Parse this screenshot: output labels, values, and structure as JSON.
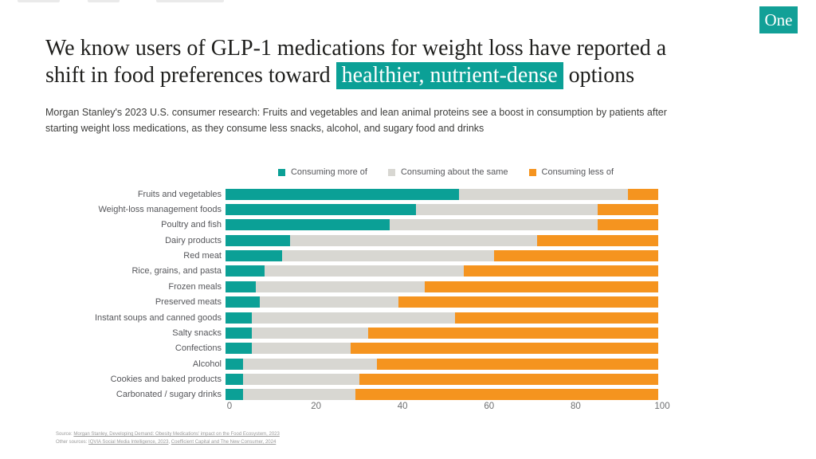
{
  "brand": {
    "logo_text": "One",
    "teal": "#0ba096",
    "orange": "#f5941f",
    "gray": "#d8d7d2"
  },
  "header": {
    "title_line1": "We know users of GLP-1 medications for weight loss have reported a",
    "title_line2_pre": "shift in food preferences toward ",
    "title_highlight": "healthier, nutrient-dense",
    "title_line2_post": " options",
    "subtitle": "Morgan Stanley's 2023 U.S. consumer research: Fruits and vegetables and lean animal proteins see a boost in consumption by patients after starting weight loss medications, as they consume less snacks, alcohol, and sugary food and drinks"
  },
  "chart_data": {
    "type": "bar",
    "orientation": "horizontal",
    "stacked": true,
    "categories": [
      "Fruits and vegetables",
      "Weight-loss management foods",
      "Poultry and fish",
      "Dairy products",
      "Red meat",
      "Rice, grains, and pasta",
      "Frozen meals",
      "Preserved meats",
      "Instant soups and canned goods",
      "Salty snacks",
      "Confections",
      "Alcohol",
      "Cookies and baked products",
      "Carbonated / sugary drinks"
    ],
    "series": [
      {
        "name": "Consuming more of",
        "color": "#0ba096",
        "values": [
          54,
          44,
          38,
          15,
          13,
          9,
          7,
          8,
          6,
          6,
          6,
          4,
          4,
          4
        ]
      },
      {
        "name": "Consuming about the same",
        "color": "#d8d7d2",
        "values": [
          39,
          42,
          48,
          57,
          49,
          46,
          39,
          32,
          47,
          27,
          23,
          31,
          27,
          26
        ]
      },
      {
        "name": "Consuming less of",
        "color": "#f5941f",
        "values": [
          7,
          14,
          14,
          28,
          38,
          45,
          54,
          60,
          47,
          67,
          71,
          65,
          69,
          70
        ]
      }
    ],
    "xlim": [
      0,
      100
    ],
    "x_ticks": [
      "0",
      "20",
      "40",
      "60",
      "80",
      "100"
    ],
    "legend_position": "top",
    "grid": false
  },
  "footer": {
    "source_label": "Source:",
    "source_link": "Morgan Stanley, Developing Demand: Obesity Medications' impact on the Food Ecosystem, 2023",
    "other_label": "Other sources:",
    "other_link1": "IQVIA Social Media Intelligence, 2023",
    "other_sep": ", ",
    "other_link2": "Coefficient Capital and The New Consumer, 2024"
  }
}
